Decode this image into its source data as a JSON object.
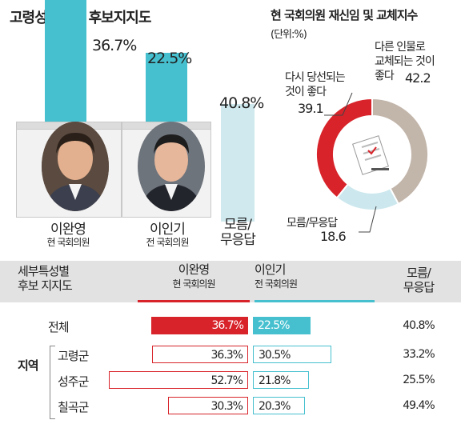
{
  "left_title": "고령성주칠곡 후보지지도",
  "candidates": [
    {
      "name": "이완영",
      "sub": "현 국회의원",
      "value": 36.7,
      "label": "36.7%"
    },
    {
      "name": "이인기",
      "sub": "전 국회의원",
      "value": 22.5,
      "label": "22.5%"
    },
    {
      "name": "모름/\n무응답",
      "value": 40.8,
      "label": "40.8%"
    }
  ],
  "right_title": "현 국회의원 재신임 및 교체지수",
  "right_unit": "(단위:%)",
  "donut": [
    {
      "label_line1": "다시 당선되는",
      "label_line2": "것이 좋다",
      "value": 39.1,
      "value_label": "39.1",
      "color": "#d8232a"
    },
    {
      "label_line1": "다른 인물로",
      "label_line2": "교체되는 것이",
      "label_line3": "좋다",
      "value": 42.2,
      "value_label": "42.2",
      "color": "#c2b5aa"
    },
    {
      "label_line1": "모름/무응답",
      "value": 18.6,
      "value_label": "18.6",
      "color": "#cce8ee"
    }
  ],
  "table": {
    "header": {
      "col0": "세부특성별\n후보 지지도",
      "col1_name": "이완영",
      "col1_sub": "현 국회의원",
      "col2_name": "이인기",
      "col2_sub": "전 국회의원",
      "col3": "모름/\n무응답"
    },
    "group_label": "지역",
    "rows": [
      {
        "label": "전체",
        "a": 36.7,
        "a_label": "36.7%",
        "b": 22.5,
        "b_label": "22.5%",
        "c_label": "40.8%",
        "solid": true
      },
      {
        "label": "고령군",
        "a": 36.3,
        "a_label": "36.3%",
        "b": 30.5,
        "b_label": "30.5%",
        "c_label": "33.2%",
        "solid": false
      },
      {
        "label": "성주군",
        "a": 52.7,
        "a_label": "52.7%",
        "b": 21.8,
        "b_label": "21.8%",
        "c_label": "25.5%",
        "solid": false
      },
      {
        "label": "칠곡군",
        "a": 30.3,
        "a_label": "30.3%",
        "b": 20.3,
        "b_label": "20.3%",
        "c_label": "49.4%",
        "solid": false
      }
    ]
  },
  "chart_data": [
    {
      "type": "bar",
      "title": "고령성주칠곡 후보지지도",
      "categories": [
        "이완영",
        "이인기",
        "모름/무응답"
      ],
      "values": [
        36.7,
        22.5,
        40.8
      ]
    },
    {
      "type": "pie",
      "title": "현 국회의원 재신임 및 교체지수",
      "unit": "(단위:%)",
      "categories": [
        "다시 당선되는 것이 좋다",
        "다른 인물로 교체되는 것이 좋다",
        "모름/무응답"
      ],
      "values": [
        39.1,
        42.2,
        18.6
      ]
    },
    {
      "type": "bar",
      "title": "세부특성별 후보 지지도",
      "categories": [
        "전체",
        "고령군",
        "성주군",
        "칠곡군"
      ],
      "series": [
        {
          "name": "이완영",
          "values": [
            36.7,
            36.3,
            52.7,
            30.3
          ]
        },
        {
          "name": "이인기",
          "values": [
            22.5,
            30.5,
            21.8,
            20.3
          ]
        },
        {
          "name": "모름/무응답",
          "values": [
            40.8,
            33.2,
            25.5,
            49.4
          ]
        }
      ]
    }
  ],
  "colors": {
    "teal": "#46c0cf",
    "red": "#d8232a",
    "beige": "#c2b5aa",
    "light": "#cce8ee"
  }
}
